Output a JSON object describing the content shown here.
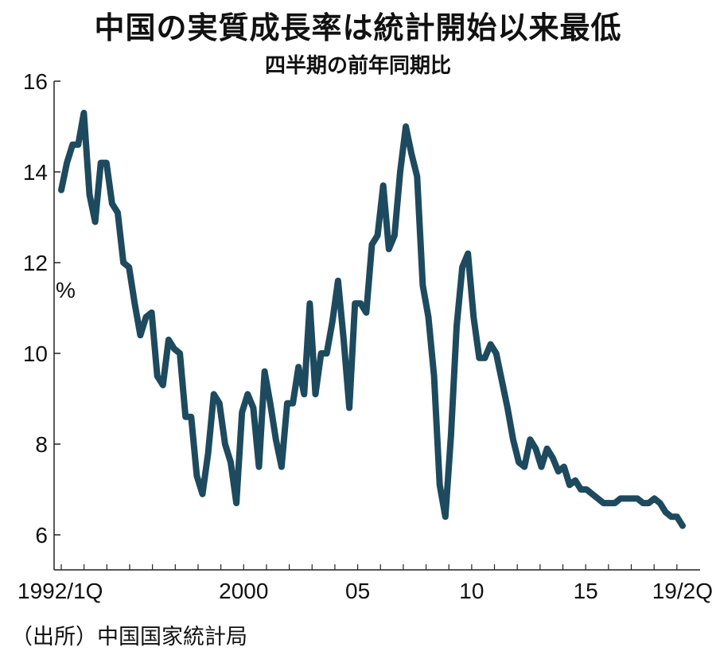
{
  "title": "中国の実質成長率は統計開始以来最低",
  "subtitle": "四半期の前年同期比",
  "source": "（出所）中国国家統計局",
  "colors": {
    "line": "#1d4a5e",
    "axis": "#222222"
  },
  "chart_data": {
    "type": "line",
    "title": "中国の実質成長率は統計開始以来最低",
    "subtitle": "四半期の前年同期比",
    "ylabel": "%",
    "xlabel": "",
    "ylim": [
      6,
      16
    ],
    "xlim": [
      1992.0,
      2019.25
    ],
    "grid": false,
    "legend": "none",
    "y_ticks": [
      {
        "value": 6,
        "label": "6"
      },
      {
        "value": 8,
        "label": "8"
      },
      {
        "value": 10,
        "label": "10"
      },
      {
        "value": 12,
        "label": "12"
      },
      {
        "value": 14,
        "label": "14"
      },
      {
        "value": 16,
        "label": "16"
      }
    ],
    "x_tick_labels": [
      {
        "x": 1992.0,
        "label": "1992/1Q"
      },
      {
        "x": 2000.0,
        "label": "2000"
      },
      {
        "x": 2005.0,
        "label": "05"
      },
      {
        "x": 2010.0,
        "label": "10"
      },
      {
        "x": 2015.0,
        "label": "15"
      },
      {
        "x": 2019.25,
        "label": "19/2Q"
      }
    ],
    "series": [
      {
        "values": [
          13.6,
          14.2,
          14.6,
          14.6,
          15.3,
          13.5,
          12.9,
          14.2,
          14.2,
          13.3,
          13.1,
          12.0,
          11.9,
          11.1,
          10.4,
          10.8,
          10.9,
          9.5,
          9.3,
          10.3,
          10.1,
          10.0,
          8.6,
          8.6,
          7.3,
          6.9,
          7.8,
          9.1,
          8.9,
          8.0,
          7.6,
          6.7,
          8.7,
          9.1,
          8.8,
          7.5,
          9.6,
          8.9,
          8.1,
          7.5,
          8.9,
          8.9,
          9.7,
          9.1,
          11.1,
          9.1,
          10.0,
          10.0,
          10.7,
          11.6,
          10.3,
          8.8,
          11.1,
          11.1,
          10.9,
          12.4,
          12.6,
          13.7,
          12.3,
          12.6,
          14.0,
          15.0,
          14.4,
          13.9,
          11.5,
          10.8,
          9.5,
          7.1,
          6.4,
          8.2,
          10.6,
          11.9,
          12.2,
          10.8,
          9.9,
          9.9,
          10.2,
          10.0,
          9.4,
          8.8,
          8.1,
          7.6,
          7.5,
          8.1,
          7.9,
          7.5,
          7.9,
          7.7,
          7.4,
          7.5,
          7.1,
          7.2,
          7.0,
          7.0,
          6.9,
          6.8,
          6.7,
          6.7,
          6.7,
          6.8,
          6.8,
          6.8,
          6.8,
          6.7,
          6.7,
          6.8,
          6.7,
          6.5,
          6.4,
          6.4,
          6.2
        ]
      }
    ]
  }
}
